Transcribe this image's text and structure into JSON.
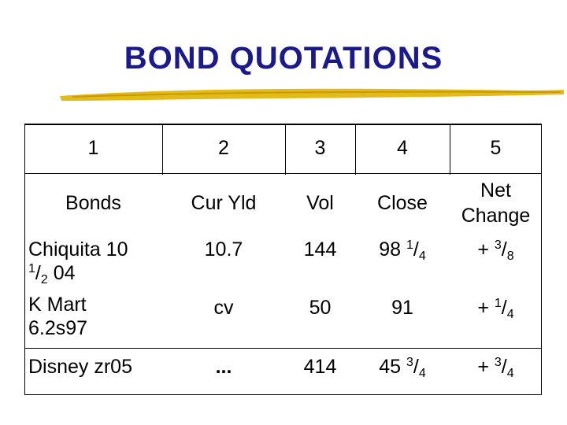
{
  "title": "BOND QUOTATIONS",
  "colors": {
    "title": "#1a1a8c",
    "underline": "#e0b400"
  },
  "columns": {
    "numbers": [
      "1",
      "2",
      "3",
      "4",
      "5"
    ],
    "labels": [
      "Bonds",
      "Cur Yld",
      "Vol",
      "Close",
      "Net",
      "Change"
    ]
  },
  "rows": [
    {
      "bond_name": "Chiquita 10",
      "bond_frac_num": "1",
      "bond_frac_den": "2",
      "bond_year": "04",
      "cur_yld": "10.7",
      "vol": "144",
      "close_whole": "98",
      "close_num": "1",
      "close_den": "4",
      "change_sign": "+",
      "change_num": "3",
      "change_den": "8"
    },
    {
      "bond_name_line1": "K Mart",
      "bond_name_line2": "6.2s97",
      "cur_yld": "cv",
      "vol": "50",
      "close": "91",
      "change_sign": "+",
      "change_num": "1",
      "change_den": "4"
    },
    {
      "bond_name": "Disney zr05",
      "cur_yld": "...",
      "vol": "414",
      "close_whole": "45",
      "close_num": "3",
      "close_den": "4",
      "change_sign": "+",
      "change_num": "3",
      "change_den": "4"
    }
  ]
}
